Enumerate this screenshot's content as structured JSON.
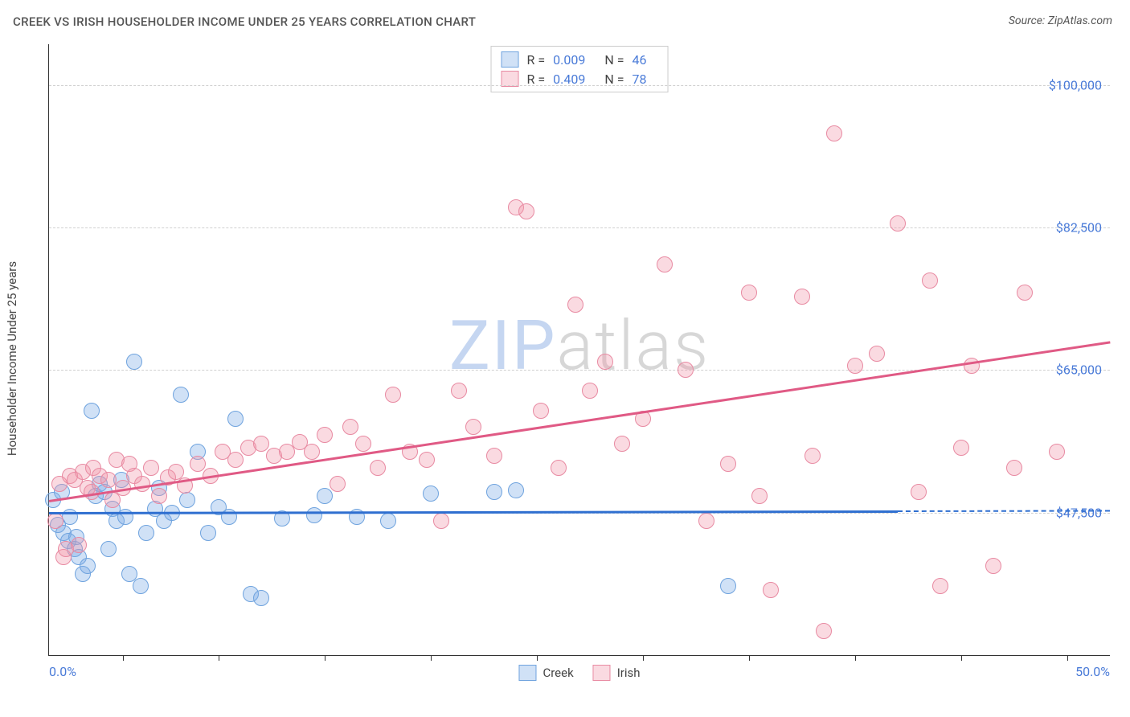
{
  "title": "CREEK VS IRISH HOUSEHOLDER INCOME UNDER 25 YEARS CORRELATION CHART",
  "source": "Source: ZipAtlas.com",
  "y_axis_title": "Householder Income Under 25 years",
  "watermark": {
    "part1": "ZIP",
    "part2": "atlas"
  },
  "chart": {
    "type": "scatter",
    "x_min": 0.0,
    "x_max": 50.0,
    "y_min": 30000,
    "y_max": 105000,
    "x_label_min": "0.0%",
    "x_label_max": "50.0%",
    "y_ticks": [
      47500,
      65000,
      82500,
      100000
    ],
    "y_tick_labels": [
      "$47,500",
      "$65,000",
      "$82,500",
      "$100,000"
    ],
    "x_ticks_pct": [
      3.5,
      8,
      13,
      18,
      23,
      28,
      33,
      38,
      43,
      48
    ],
    "background_color": "#ffffff",
    "grid_color": "#d0d0d0",
    "axis_color": "#333333",
    "marker_radius": 9,
    "marker_stroke_width": 1.5,
    "series": [
      {
        "name": "Creek",
        "fill": "rgba(120,170,230,0.35)",
        "stroke": "#6fa3de",
        "R": "0.009",
        "N": "46",
        "trend": {
          "color": "#2f6fd0",
          "x1": 0,
          "y1": 47600,
          "x2": 40,
          "y2": 47800,
          "dash_to_x": 50
        },
        "points": [
          [
            0.2,
            49000
          ],
          [
            0.4,
            46000
          ],
          [
            0.6,
            50000
          ],
          [
            0.7,
            45000
          ],
          [
            0.9,
            44000
          ],
          [
            1.0,
            47000
          ],
          [
            1.2,
            43000
          ],
          [
            1.3,
            44500
          ],
          [
            1.4,
            42000
          ],
          [
            1.6,
            40000
          ],
          [
            1.8,
            41000
          ],
          [
            2.0,
            60000
          ],
          [
            2.2,
            49500
          ],
          [
            2.4,
            51000
          ],
          [
            2.6,
            50000
          ],
          [
            2.8,
            43000
          ],
          [
            3.0,
            48000
          ],
          [
            3.2,
            46500
          ],
          [
            3.4,
            51500
          ],
          [
            3.6,
            47000
          ],
          [
            3.8,
            40000
          ],
          [
            4.0,
            66000
          ],
          [
            4.3,
            38500
          ],
          [
            4.6,
            45000
          ],
          [
            5.0,
            48000
          ],
          [
            5.2,
            50500
          ],
          [
            5.4,
            46500
          ],
          [
            5.8,
            47500
          ],
          [
            6.2,
            62000
          ],
          [
            6.5,
            49000
          ],
          [
            7.0,
            55000
          ],
          [
            7.5,
            45000
          ],
          [
            8.0,
            48200
          ],
          [
            8.5,
            47000
          ],
          [
            8.8,
            59000
          ],
          [
            9.5,
            37500
          ],
          [
            10.0,
            37000
          ],
          [
            11.0,
            46800
          ],
          [
            12.5,
            47200
          ],
          [
            13.0,
            49500
          ],
          [
            14.5,
            47000
          ],
          [
            16.0,
            46500
          ],
          [
            18.0,
            49800
          ],
          [
            21.0,
            50000
          ],
          [
            22.0,
            50200
          ],
          [
            32.0,
            38500
          ]
        ]
      },
      {
        "name": "Irish",
        "fill": "rgba(240,150,170,0.35)",
        "stroke": "#e88aa2",
        "R": "0.409",
        "N": "78",
        "trend": {
          "color": "#e05a85",
          "x1": 0,
          "y1": 49000,
          "x2": 50,
          "y2": 68500
        },
        "points": [
          [
            0.3,
            46500
          ],
          [
            0.5,
            51000
          ],
          [
            0.7,
            42000
          ],
          [
            0.8,
            43000
          ],
          [
            1.0,
            52000
          ],
          [
            1.2,
            51500
          ],
          [
            1.4,
            43500
          ],
          [
            1.6,
            52500
          ],
          [
            1.8,
            50500
          ],
          [
            2.0,
            50000
          ],
          [
            2.1,
            53000
          ],
          [
            2.4,
            52000
          ],
          [
            2.8,
            51500
          ],
          [
            3.0,
            49000
          ],
          [
            3.2,
            54000
          ],
          [
            3.5,
            50500
          ],
          [
            3.8,
            53500
          ],
          [
            4.0,
            52000
          ],
          [
            4.4,
            51000
          ],
          [
            4.8,
            53000
          ],
          [
            5.2,
            49500
          ],
          [
            5.6,
            51800
          ],
          [
            6.0,
            52500
          ],
          [
            6.4,
            50800
          ],
          [
            7.0,
            53500
          ],
          [
            7.6,
            52000
          ],
          [
            8.2,
            55000
          ],
          [
            8.8,
            54000
          ],
          [
            9.4,
            55500
          ],
          [
            10.0,
            56000
          ],
          [
            10.6,
            54500
          ],
          [
            11.2,
            55000
          ],
          [
            11.8,
            56200
          ],
          [
            12.4,
            55000
          ],
          [
            13.0,
            57000
          ],
          [
            13.6,
            51000
          ],
          [
            14.2,
            58000
          ],
          [
            14.8,
            56000
          ],
          [
            15.5,
            53000
          ],
          [
            16.2,
            62000
          ],
          [
            17.0,
            55000
          ],
          [
            17.8,
            54000
          ],
          [
            18.5,
            46500
          ],
          [
            19.3,
            62500
          ],
          [
            20.0,
            58000
          ],
          [
            21.0,
            54500
          ],
          [
            22.0,
            85000
          ],
          [
            22.5,
            84500
          ],
          [
            23.2,
            60000
          ],
          [
            24.0,
            53000
          ],
          [
            24.8,
            73000
          ],
          [
            25.5,
            62500
          ],
          [
            26.2,
            66000
          ],
          [
            27.0,
            56000
          ],
          [
            28.0,
            59000
          ],
          [
            29.0,
            78000
          ],
          [
            30.0,
            65000
          ],
          [
            31.0,
            46500
          ],
          [
            32.0,
            53500
          ],
          [
            33.0,
            74500
          ],
          [
            33.5,
            49500
          ],
          [
            34.0,
            38000
          ],
          [
            35.5,
            74000
          ],
          [
            36.0,
            54500
          ],
          [
            36.5,
            33000
          ],
          [
            37.0,
            94000
          ],
          [
            38.0,
            65500
          ],
          [
            39.0,
            67000
          ],
          [
            40.0,
            83000
          ],
          [
            41.0,
            50000
          ],
          [
            41.5,
            76000
          ],
          [
            42.0,
            38500
          ],
          [
            43.0,
            55500
          ],
          [
            43.5,
            65500
          ],
          [
            44.5,
            41000
          ],
          [
            45.5,
            53000
          ],
          [
            46.0,
            74500
          ],
          [
            47.5,
            55000
          ]
        ]
      }
    ]
  },
  "legend_top_labels": {
    "R": "R =",
    "N": "N ="
  },
  "legend_bottom": [
    "Creek",
    "Irish"
  ]
}
